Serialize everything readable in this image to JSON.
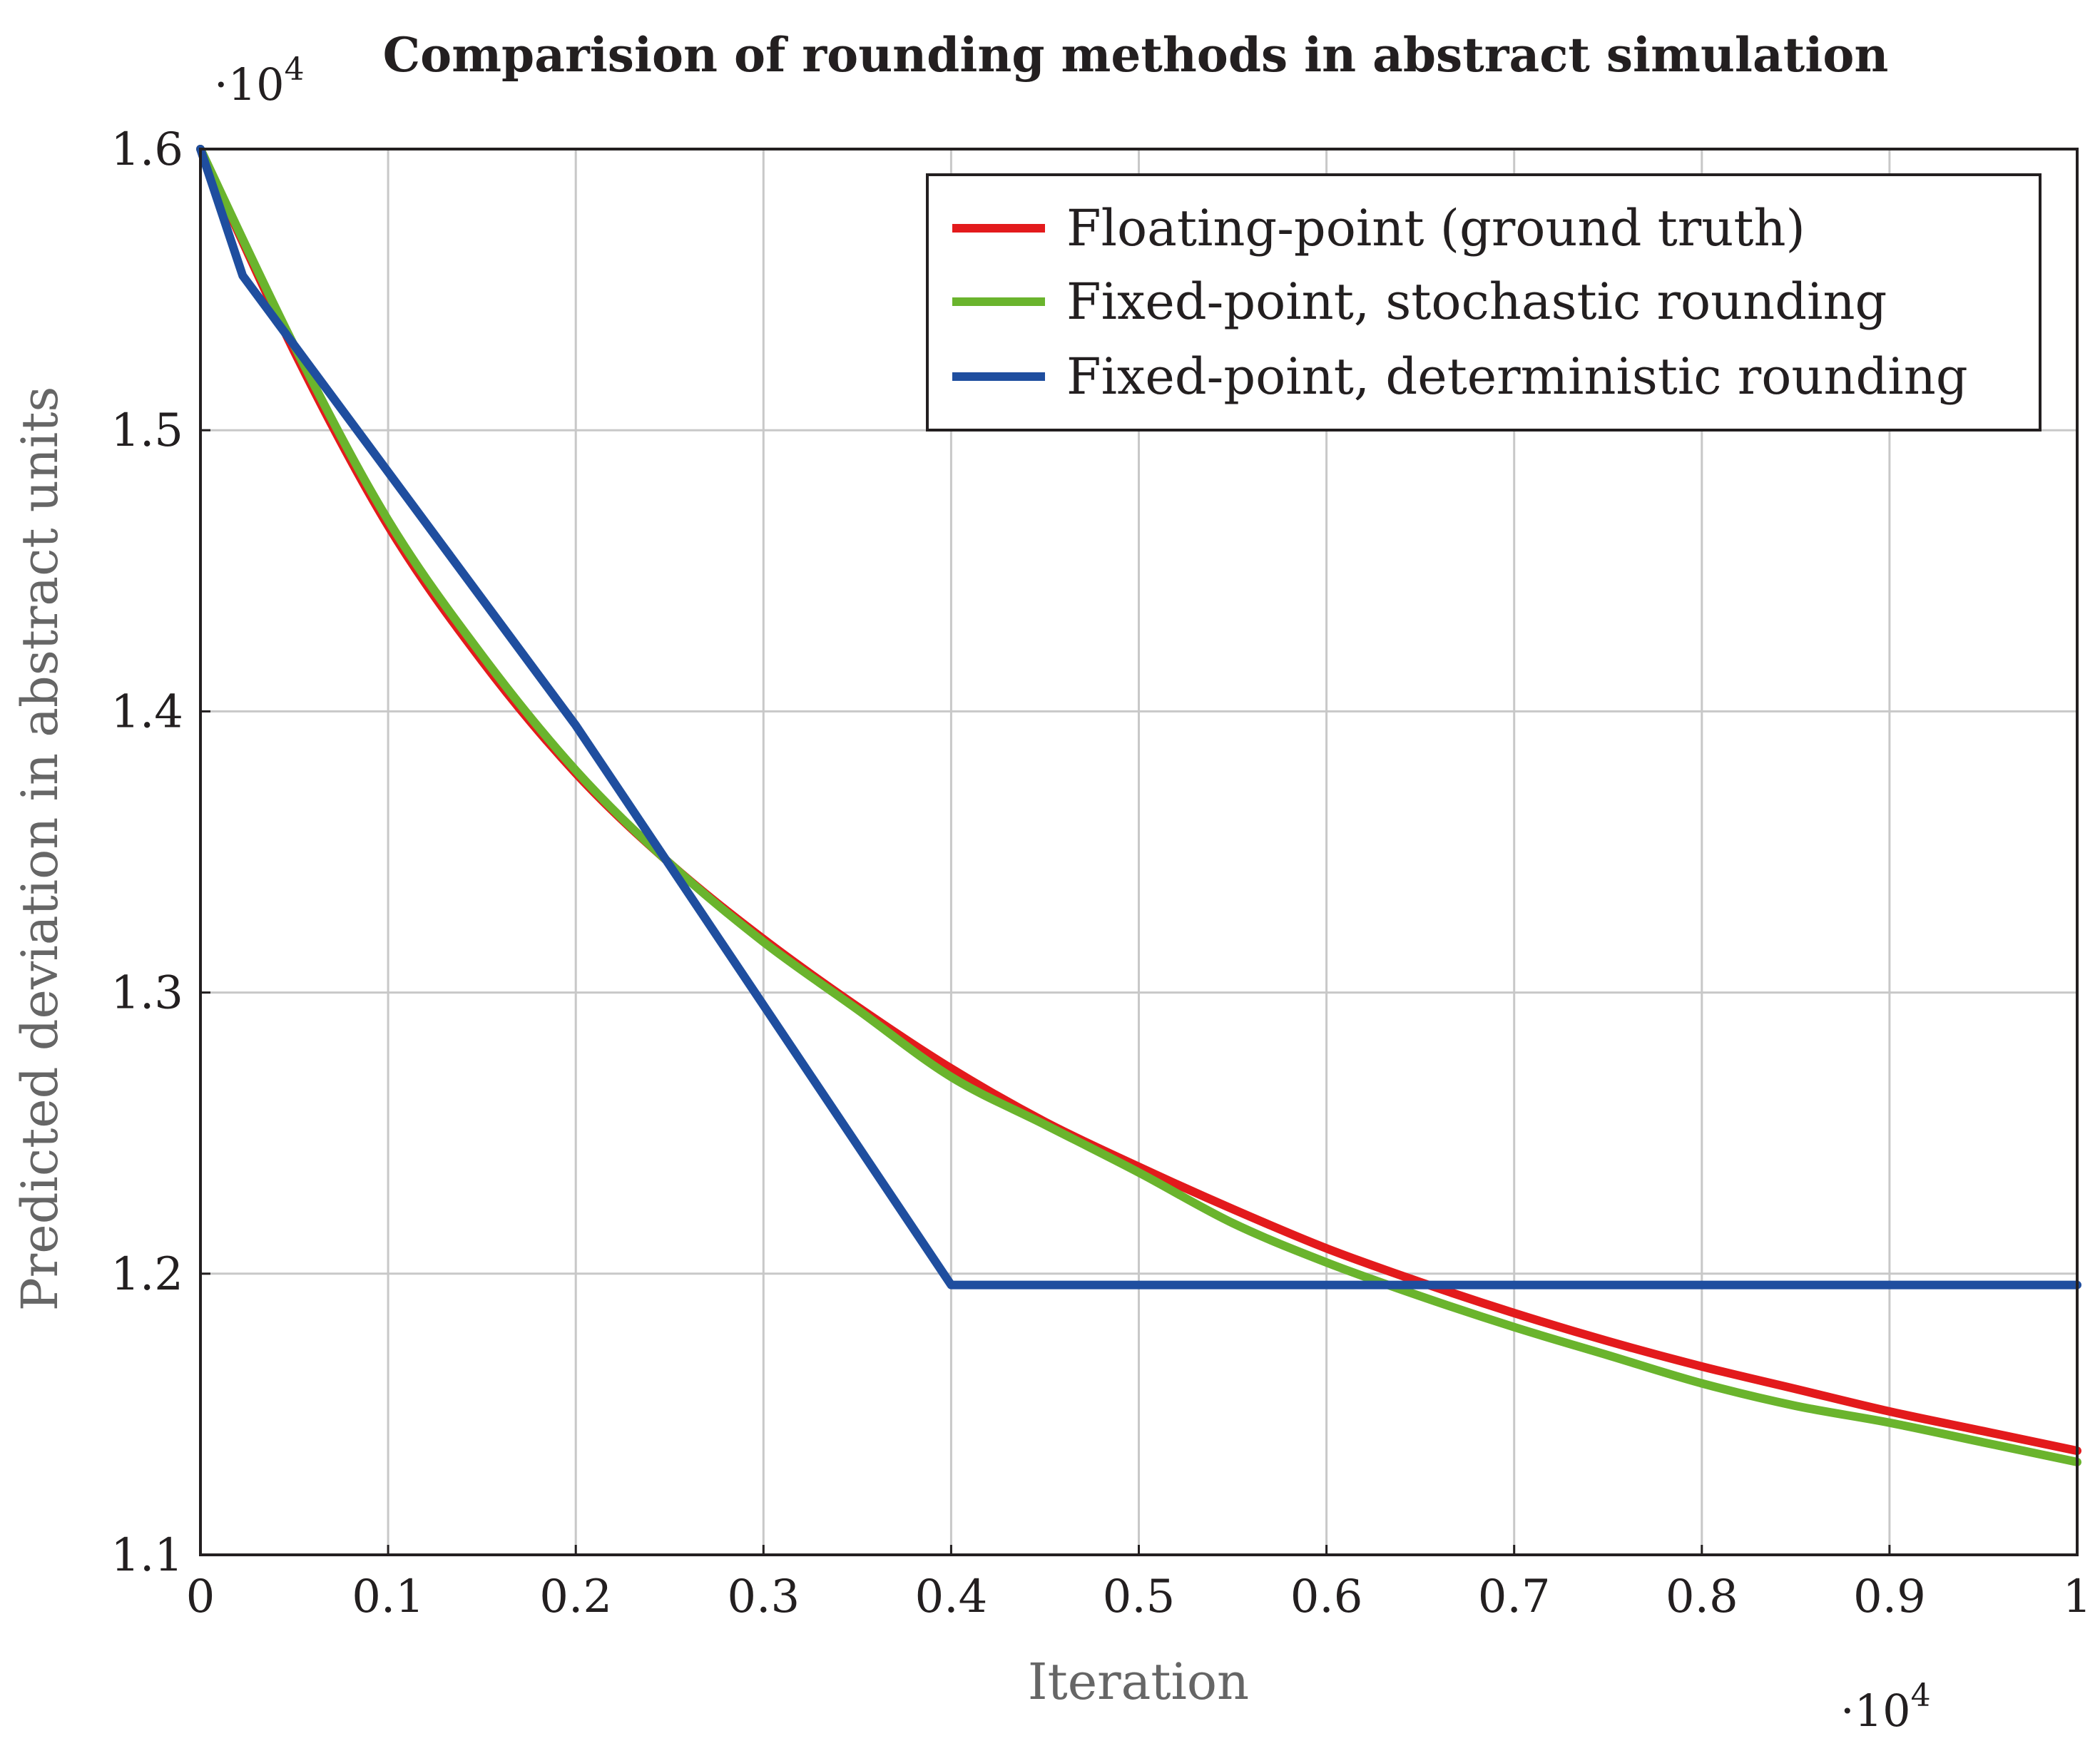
{
  "chart_data": {
    "type": "line",
    "title": "Comparision of rounding methods in abstract simulation",
    "xlabel": "Iteration",
    "ylabel": "Predicted deviation in abstract units",
    "x_multiplier_base": "·10",
    "x_multiplier_exp": "4",
    "y_multiplier_base": "·10",
    "y_multiplier_exp": "4",
    "xlim": [
      0,
      1
    ],
    "ylim": [
      1.1,
      1.6
    ],
    "grid": true,
    "legend_position": "top-right",
    "x_ticks": [
      0,
      0.1,
      0.2,
      0.3,
      0.4,
      0.5,
      0.6,
      0.7,
      0.8,
      0.9,
      1
    ],
    "x_tick_labels": [
      "0",
      "0.1",
      "0.2",
      "0.3",
      "0.4",
      "0.5",
      "0.6",
      "0.7",
      "0.8",
      "0.9",
      "1"
    ],
    "y_ticks": [
      1.1,
      1.2,
      1.3,
      1.4,
      1.5,
      1.6
    ],
    "y_tick_labels": [
      "1.1",
      "1.2",
      "1.3",
      "1.4",
      "1.5",
      "1.6"
    ],
    "series": [
      {
        "name": "Floating-point (ground truth)",
        "color": "#e31a1c",
        "x": [
          0,
          0.05,
          0.1,
          0.15,
          0.2,
          0.25,
          0.3,
          0.35,
          0.4,
          0.45,
          0.5,
          0.55,
          0.6,
          0.65,
          0.7,
          0.75,
          0.8,
          0.85,
          0.9,
          0.95,
          1.0
        ],
        "y": [
          1.6,
          1.528,
          1.466,
          1.418,
          1.378,
          1.346,
          1.319,
          1.295,
          1.273,
          1.254,
          1.238,
          1.223,
          1.209,
          1.197,
          1.186,
          1.176,
          1.167,
          1.159,
          1.151,
          1.144,
          1.137
        ]
      },
      {
        "name": "Fixed-point, stochastic rounding",
        "color": "#6ab42d",
        "x": [
          0,
          0.05,
          0.1,
          0.15,
          0.2,
          0.25,
          0.3,
          0.35,
          0.4,
          0.45,
          0.5,
          0.55,
          0.6,
          0.65,
          0.7,
          0.75,
          0.8,
          0.85,
          0.9,
          0.95,
          1.0
        ],
        "y": [
          1.6,
          1.53,
          1.468,
          1.42,
          1.379,
          1.346,
          1.318,
          1.294,
          1.27,
          1.253,
          1.236,
          1.218,
          1.204,
          1.192,
          1.181,
          1.171,
          1.161,
          1.153,
          1.147,
          1.14,
          1.133
        ]
      },
      {
        "name": "Fixed-point, deterministic rounding",
        "color": "#1f4e9f",
        "x": [
          0,
          0.0225,
          0.2,
          0.4,
          1.0
        ],
        "y": [
          1.6,
          1.555,
          1.395,
          1.196,
          1.196
        ]
      }
    ]
  }
}
